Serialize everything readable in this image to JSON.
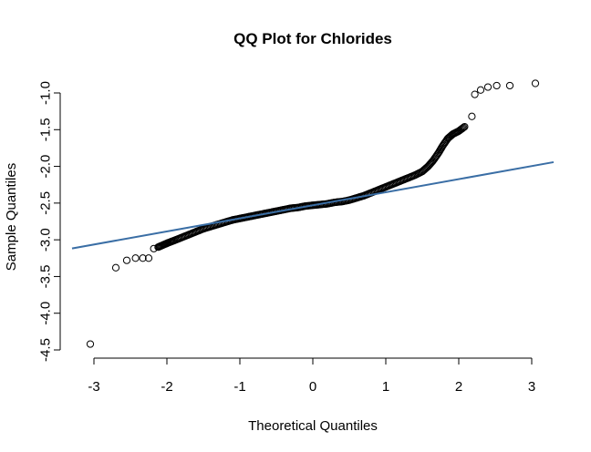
{
  "chart_data": {
    "type": "scatter",
    "title": "QQ Plot for Chlorides",
    "xlabel": "Theoretical Quantiles",
    "ylabel": "Sample Quantiles",
    "xlim": [
      -3.3,
      3.3
    ],
    "ylim": [
      -4.5,
      -1.0
    ],
    "x_ticks": [
      "-3",
      "-2",
      "-1",
      "0",
      "1",
      "2",
      "3"
    ],
    "y_ticks": [
      "-4.5",
      "-4.0",
      "-3.5",
      "-3.0",
      "-2.5",
      "-2.0",
      "-1.5",
      "-1.0"
    ],
    "reference_line": {
      "slope": 0.178,
      "intercept": -2.53,
      "color": "#3a6ea5"
    },
    "point_color": "#000000",
    "grid": false,
    "tail_points": [
      {
        "x": -3.05,
        "y": -4.42
      },
      {
        "x": -2.7,
        "y": -3.38
      },
      {
        "x": -2.55,
        "y": -3.28
      },
      {
        "x": -2.43,
        "y": -3.25
      },
      {
        "x": -2.33,
        "y": -3.25
      },
      {
        "x": -2.25,
        "y": -3.25
      },
      {
        "x": -2.18,
        "y": -3.12
      },
      {
        "x": 2.18,
        "y": -1.32
      },
      {
        "x": 2.22,
        "y": -1.02
      },
      {
        "x": 2.3,
        "y": -0.96
      },
      {
        "x": 2.4,
        "y": -0.92
      },
      {
        "x": 2.52,
        "y": -0.9
      },
      {
        "x": 2.7,
        "y": -0.9
      },
      {
        "x": 3.05,
        "y": -0.87
      }
    ],
    "bulk_points": [
      {
        "x": -2.12,
        "y": -3.1
      },
      {
        "x": -2.05,
        "y": -3.07
      },
      {
        "x": -1.98,
        "y": -3.04
      },
      {
        "x": -1.9,
        "y": -3.01
      },
      {
        "x": -1.8,
        "y": -2.97
      },
      {
        "x": -1.7,
        "y": -2.93
      },
      {
        "x": -1.6,
        "y": -2.89
      },
      {
        "x": -1.5,
        "y": -2.85
      },
      {
        "x": -1.4,
        "y": -2.82
      },
      {
        "x": -1.3,
        "y": -2.79
      },
      {
        "x": -1.2,
        "y": -2.76
      },
      {
        "x": -1.1,
        "y": -2.73
      },
      {
        "x": -1.0,
        "y": -2.71
      },
      {
        "x": -0.9,
        "y": -2.69
      },
      {
        "x": -0.8,
        "y": -2.67
      },
      {
        "x": -0.7,
        "y": -2.65
      },
      {
        "x": -0.6,
        "y": -2.63
      },
      {
        "x": -0.5,
        "y": -2.61
      },
      {
        "x": -0.4,
        "y": -2.59
      },
      {
        "x": -0.3,
        "y": -2.57
      },
      {
        "x": -0.2,
        "y": -2.56
      },
      {
        "x": -0.1,
        "y": -2.54
      },
      {
        "x": 0.0,
        "y": -2.53
      },
      {
        "x": 0.1,
        "y": -2.52
      },
      {
        "x": 0.2,
        "y": -2.51
      },
      {
        "x": 0.3,
        "y": -2.49
      },
      {
        "x": 0.4,
        "y": -2.48
      },
      {
        "x": 0.5,
        "y": -2.46
      },
      {
        "x": 0.6,
        "y": -2.43
      },
      {
        "x": 0.7,
        "y": -2.4
      },
      {
        "x": 0.8,
        "y": -2.36
      },
      {
        "x": 0.9,
        "y": -2.32
      },
      {
        "x": 1.0,
        "y": -2.28
      },
      {
        "x": 1.1,
        "y": -2.24
      },
      {
        "x": 1.2,
        "y": -2.2
      },
      {
        "x": 1.3,
        "y": -2.16
      },
      {
        "x": 1.4,
        "y": -2.12
      },
      {
        "x": 1.5,
        "y": -2.07
      },
      {
        "x": 1.58,
        "y": -2.0
      },
      {
        "x": 1.65,
        "y": -1.92
      },
      {
        "x": 1.72,
        "y": -1.82
      },
      {
        "x": 1.78,
        "y": -1.72
      },
      {
        "x": 1.85,
        "y": -1.62
      },
      {
        "x": 1.92,
        "y": -1.56
      },
      {
        "x": 2.0,
        "y": -1.52
      },
      {
        "x": 2.08,
        "y": -1.46
      }
    ]
  }
}
